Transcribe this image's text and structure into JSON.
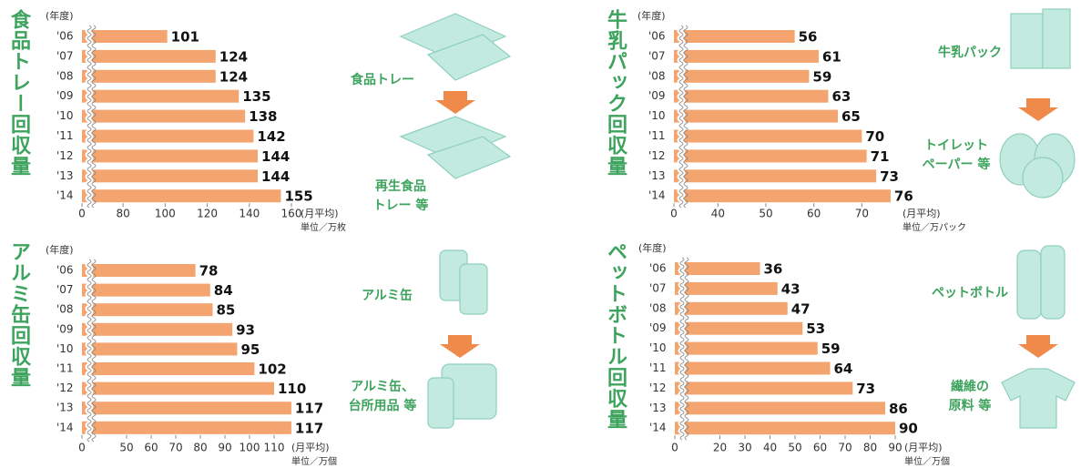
{
  "chart_data": [
    {
      "type": "bar",
      "title": "食品トレー回収量",
      "year_label": "(年度)",
      "categories": [
        "'06",
        "'07",
        "'08",
        "'09",
        "'10",
        "'11",
        "'12",
        "'13",
        "'14"
      ],
      "values": [
        101,
        124,
        124,
        135,
        138,
        142,
        144,
        144,
        155
      ],
      "color": "#f4a46e",
      "xlim": [
        0,
        160
      ],
      "xbreak": [
        0,
        70
      ],
      "xticks": [
        0,
        80,
        100,
        120,
        140,
        160
      ],
      "unit_note": "(月平均)",
      "unit": "単位／万枚",
      "annotations": [
        [
          "食品トレー"
        ],
        [
          "再生食品",
          "トレー 等"
        ]
      ]
    },
    {
      "type": "bar",
      "title": "牛乳パック回収量",
      "year_label": "(年度)",
      "categories": [
        "'06",
        "'07",
        "'08",
        "'09",
        "'10",
        "'11",
        "'12",
        "'13",
        "'14"
      ],
      "values": [
        56,
        61,
        59,
        63,
        65,
        70,
        71,
        73,
        76
      ],
      "color": "#f4a46e",
      "xlim": [
        0,
        80
      ],
      "xbreak": [
        0,
        35
      ],
      "xticks": [
        0,
        40,
        50,
        60,
        70
      ],
      "unit_note": "(月平均)",
      "unit": "単位／万パック",
      "annotations": [
        [
          "牛乳パック"
        ],
        [
          "トイレット",
          "ペーパー 等"
        ]
      ]
    },
    {
      "type": "bar",
      "title": "アルミ缶回収量",
      "year_label": "(年度)",
      "categories": [
        "'06",
        "'07",
        "'08",
        "'09",
        "'10",
        "'11",
        "'12",
        "'13",
        "'14"
      ],
      "values": [
        78,
        84,
        85,
        93,
        95,
        102,
        110,
        117,
        117
      ],
      "color": "#f4a46e",
      "xlim": [
        0,
        120
      ],
      "xbreak": [
        0,
        40
      ],
      "xticks": [
        0,
        50,
        60,
        70,
        80,
        90,
        100,
        110
      ],
      "unit_note": "(月平均)",
      "unit": "単位／万個",
      "annotations": [
        [
          "アルミ缶"
        ],
        [
          "アルミ缶、",
          "台所用品 等"
        ]
      ]
    },
    {
      "type": "bar",
      "title": "ペットボトル回収量",
      "year_label": "(年度)",
      "categories": [
        "'06",
        "'07",
        "'08",
        "'09",
        "'10",
        "'11",
        "'12",
        "'13",
        "'14"
      ],
      "values": [
        36,
        43,
        47,
        53,
        59,
        64,
        73,
        86,
        90
      ],
      "color": "#f4a46e",
      "xlim": [
        0,
        90
      ],
      "xbreak": [
        0,
        10
      ],
      "xticks": [
        0,
        20,
        30,
        40,
        50,
        60,
        70,
        80,
        90
      ],
      "unit_note": "(月平均)",
      "unit": "単位／万個",
      "annotations": [
        [
          "ペットボトル"
        ],
        [
          "繊維の",
          "原料 等"
        ]
      ]
    }
  ]
}
